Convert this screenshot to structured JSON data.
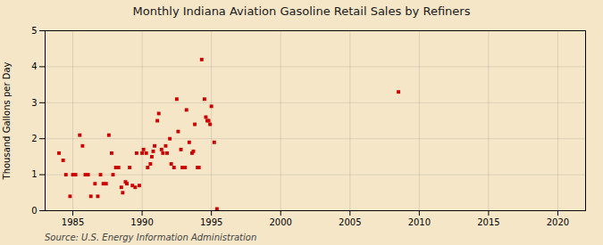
{
  "chart_data": {
    "type": "scatter",
    "title": "Monthly Indiana Aviation Gasoline Retail Sales by Refiners",
    "ylabel": "Thousand Gallons per Day",
    "source": "Source: U.S. Energy Information Administration",
    "color": "#cc0000",
    "marker": "square",
    "grid": true,
    "xlim": [
      1983,
      2022
    ],
    "ylim": [
      0,
      5
    ],
    "xticks": [
      1985,
      1990,
      1995,
      2000,
      2005,
      2010,
      2015,
      2020
    ],
    "yticks": [
      0,
      1,
      2,
      3,
      4,
      5
    ],
    "x": [
      1984.0,
      1984.3,
      1984.5,
      1984.8,
      1985.0,
      1985.2,
      1985.5,
      1985.7,
      1985.9,
      1986.1,
      1986.3,
      1986.6,
      1986.8,
      1987.0,
      1987.2,
      1987.4,
      1987.6,
      1987.8,
      1987.9,
      1988.1,
      1988.3,
      1988.5,
      1988.6,
      1988.8,
      1988.9,
      1989.1,
      1989.3,
      1989.5,
      1989.6,
      1989.8,
      1990.0,
      1990.1,
      1990.3,
      1990.4,
      1990.6,
      1990.7,
      1990.8,
      1990.9,
      1991.1,
      1991.2,
      1991.4,
      1991.5,
      1991.7,
      1991.8,
      1992.0,
      1992.1,
      1992.3,
      1992.5,
      1992.6,
      1992.8,
      1992.9,
      1993.1,
      1993.2,
      1993.4,
      1993.6,
      1993.7,
      1993.8,
      1994.0,
      1994.1,
      1994.3,
      1994.5,
      1994.6,
      1994.7,
      1994.8,
      1994.9,
      1995.0,
      1995.2,
      1995.4,
      2008.5
    ],
    "values": [
      1.6,
      1.4,
      1.0,
      0.4,
      1.0,
      1.0,
      2.1,
      1.8,
      1.0,
      1.0,
      0.4,
      0.75,
      0.4,
      1.0,
      0.75,
      0.75,
      2.1,
      1.6,
      1.0,
      1.2,
      1.2,
      0.65,
      0.5,
      0.8,
      0.75,
      1.2,
      0.7,
      0.65,
      1.6,
      0.7,
      1.6,
      1.7,
      1.6,
      1.2,
      1.3,
      1.5,
      1.65,
      1.8,
      2.5,
      2.7,
      1.7,
      1.6,
      1.8,
      1.6,
      2.0,
      1.3,
      1.2,
      3.1,
      2.2,
      1.7,
      1.2,
      1.2,
      2.8,
      1.9,
      1.6,
      1.65,
      2.4,
      1.2,
      1.2,
      4.2,
      3.1,
      2.6,
      2.5,
      2.5,
      2.4,
      2.9,
      1.9,
      0.05,
      3.3
    ]
  }
}
